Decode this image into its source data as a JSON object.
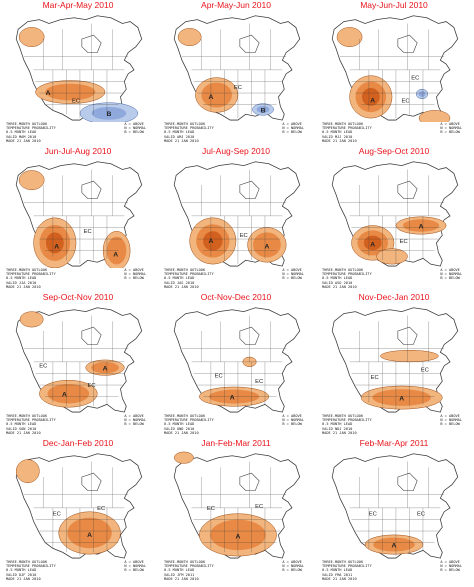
{
  "colors": {
    "above_light": "#f2b57e",
    "above_mid": "#e88a45",
    "above_dark": "#d2601e",
    "below_light": "#b9cbea",
    "below_mid": "#8fa9dc",
    "border": "#3a3a3a",
    "title": "#e8141c"
  },
  "caption": {
    "left_lines": [
      "THREE-MONTH OUTLOOK",
      "TEMPERATURE PROBABILITY",
      "0.5 MONTH LEAD",
      "VALID",
      "MADE 21 JAN 2010"
    ],
    "right_lines": [
      "A = ABOVE",
      "N = NORMAL",
      "B = BELOW"
    ]
  },
  "ec_label": "EC",
  "panels": [
    {
      "title": "Mar-Apr-May 2010",
      "valid": "MAM 2010",
      "above": [
        {
          "cx": 68,
          "cy": 85,
          "rx": 36,
          "ry": 12,
          "level": 2
        },
        {
          "cx": 28,
          "cy": 28,
          "rx": 13,
          "ry": 10,
          "level": 1
        }
      ],
      "below": [
        {
          "cx": 108,
          "cy": 107,
          "rx": 30,
          "ry": 11,
          "level": 1
        }
      ],
      "labels": [
        {
          "t": "A",
          "x": 45,
          "y": 88
        },
        {
          "t": "B",
          "x": 108,
          "y": 110
        },
        {
          "t": "EC",
          "x": 74,
          "y": 96
        }
      ]
    },
    {
      "title": "Apr-May-Jun 2010",
      "valid": "AMJ 2010",
      "above": [
        {
          "cx": 56,
          "cy": 88,
          "rx": 22,
          "ry": 18,
          "level": 2
        },
        {
          "cx": 28,
          "cy": 28,
          "rx": 12,
          "ry": 9,
          "level": 1
        }
      ],
      "below": [
        {
          "cx": 104,
          "cy": 103,
          "rx": 11,
          "ry": 6,
          "level": 1
        }
      ],
      "labels": [
        {
          "t": "A",
          "x": 50,
          "y": 92
        },
        {
          "t": "B",
          "x": 104,
          "y": 106
        },
        {
          "t": "EC",
          "x": 78,
          "y": 82
        }
      ]
    },
    {
      "title": "May-Jun-Jul 2010",
      "valid": "MJJ 2010",
      "above": [
        {
          "cx": 52,
          "cy": 90,
          "rx": 22,
          "ry": 22,
          "level": 3
        },
        {
          "cx": 118,
          "cy": 112,
          "rx": 16,
          "ry": 8,
          "level": 1
        },
        {
          "cx": 30,
          "cy": 28,
          "rx": 13,
          "ry": 10,
          "level": 1
        }
      ],
      "below": [
        {
          "cx": 105,
          "cy": 87,
          "rx": 6,
          "ry": 5,
          "level": 1
        }
      ],
      "labels": [
        {
          "t": "A",
          "x": 54,
          "y": 96
        },
        {
          "t": "EC",
          "x": 88,
          "y": 96
        },
        {
          "t": "EC",
          "x": 98,
          "y": 72
        }
      ]
    },
    {
      "title": "Jun-Jul-Aug 2010",
      "valid": "JJA 2010",
      "above": [
        {
          "cx": 52,
          "cy": 90,
          "rx": 22,
          "ry": 26,
          "level": 3
        },
        {
          "cx": 116,
          "cy": 98,
          "rx": 14,
          "ry": 20,
          "level": 2
        },
        {
          "cx": 28,
          "cy": 25,
          "rx": 13,
          "ry": 10,
          "level": 1
        }
      ],
      "below": [],
      "labels": [
        {
          "t": "A",
          "x": 54,
          "y": 96
        },
        {
          "t": "A",
          "x": 115,
          "y": 104
        },
        {
          "t": "EC",
          "x": 86,
          "y": 80
        }
      ]
    },
    {
      "title": "Jul-Aug-Sep 2010",
      "valid": "JAS 2010",
      "above": [
        {
          "cx": 52,
          "cy": 88,
          "rx": 24,
          "ry": 24,
          "level": 3
        },
        {
          "cx": 108,
          "cy": 92,
          "rx": 20,
          "ry": 18,
          "level": 2
        }
      ],
      "below": [],
      "labels": [
        {
          "t": "A",
          "x": 50,
          "y": 90
        },
        {
          "t": "A",
          "x": 108,
          "y": 96
        },
        {
          "t": "EC",
          "x": 84,
          "y": 84
        }
      ]
    },
    {
      "title": "Aug-Sep-Oct 2010",
      "valid": "ASO 2010",
      "above": [
        {
          "cx": 54,
          "cy": 90,
          "rx": 22,
          "ry": 18,
          "level": 3
        },
        {
          "cx": 104,
          "cy": 72,
          "rx": 26,
          "ry": 9,
          "level": 2
        },
        {
          "cx": 74,
          "cy": 104,
          "rx": 16,
          "ry": 8,
          "level": 1
        }
      ],
      "below": [],
      "labels": [
        {
          "t": "A",
          "x": 54,
          "y": 94
        },
        {
          "t": "A",
          "x": 104,
          "y": 75
        },
        {
          "t": "EC",
          "x": 86,
          "y": 90
        }
      ]
    },
    {
      "title": "Sep-Oct-Nov 2010",
      "valid": "SON 2010",
      "above": [
        {
          "cx": 66,
          "cy": 95,
          "rx": 30,
          "ry": 14,
          "level": 2
        },
        {
          "cx": 104,
          "cy": 68,
          "rx": 20,
          "ry": 8,
          "level": 2
        },
        {
          "cx": 28,
          "cy": 18,
          "rx": 12,
          "ry": 8,
          "level": 1
        }
      ],
      "below": [],
      "labels": [
        {
          "t": "A",
          "x": 62,
          "y": 98
        },
        {
          "t": "A",
          "x": 104,
          "y": 71
        },
        {
          "t": "EC",
          "x": 40,
          "y": 68
        },
        {
          "t": "EC",
          "x": 90,
          "y": 88
        }
      ]
    },
    {
      "title": "Oct-Nov-Dec 2010",
      "valid": "OND 2010",
      "above": [
        {
          "cx": 74,
          "cy": 98,
          "rx": 36,
          "ry": 10,
          "level": 2
        },
        {
          "cx": 90,
          "cy": 62,
          "rx": 7,
          "ry": 5,
          "level": 1
        }
      ],
      "below": [],
      "labels": [
        {
          "t": "A",
          "x": 72,
          "y": 101
        },
        {
          "t": "EC",
          "x": 58,
          "y": 78
        },
        {
          "t": "EC",
          "x": 100,
          "y": 84
        }
      ]
    },
    {
      "title": "Nov-Dec-Jan 2010",
      "valid": "NDJ 2010",
      "above": [
        {
          "cx": 84,
          "cy": 99,
          "rx": 42,
          "ry": 12,
          "level": 2
        },
        {
          "cx": 92,
          "cy": 56,
          "rx": 30,
          "ry": 6,
          "level": 1
        }
      ],
      "below": [],
      "labels": [
        {
          "t": "A",
          "x": 84,
          "y": 102
        },
        {
          "t": "EC",
          "x": 56,
          "y": 80
        },
        {
          "t": "EC",
          "x": 108,
          "y": 72
        }
      ]
    },
    {
      "title": "Dec-Jan-Feb 2010",
      "valid": "DJF 2010",
      "above": [
        {
          "cx": 88,
          "cy": 88,
          "rx": 32,
          "ry": 22,
          "level": 2
        },
        {
          "cx": 24,
          "cy": 24,
          "rx": 12,
          "ry": 12,
          "level": 1
        }
      ],
      "below": [],
      "labels": [
        {
          "t": "A",
          "x": 88,
          "y": 92
        },
        {
          "t": "EC",
          "x": 54,
          "y": 70
        },
        {
          "t": "EC",
          "x": 100,
          "y": 64
        }
      ]
    },
    {
      "title": "Jan-Feb-Mar 2011",
      "valid": "JFM 2011",
      "above": [
        {
          "cx": 78,
          "cy": 90,
          "rx": 40,
          "ry": 22,
          "level": 2
        },
        {
          "cx": 22,
          "cy": 10,
          "rx": 10,
          "ry": 6,
          "level": 1
        }
      ],
      "below": [],
      "labels": [
        {
          "t": "A",
          "x": 78,
          "y": 94
        },
        {
          "t": "EC",
          "x": 50,
          "y": 64
        },
        {
          "t": "EC",
          "x": 100,
          "y": 62
        }
      ]
    },
    {
      "title": "Feb-Mar-Apr 2011",
      "valid": "FMA 2011",
      "above": [
        {
          "cx": 76,
          "cy": 100,
          "rx": 30,
          "ry": 10,
          "level": 2
        }
      ],
      "below": [],
      "labels": [
        {
          "t": "A",
          "x": 76,
          "y": 103
        },
        {
          "t": "EC",
          "x": 54,
          "y": 70
        },
        {
          "t": "EC",
          "x": 104,
          "y": 70
        }
      ]
    }
  ]
}
